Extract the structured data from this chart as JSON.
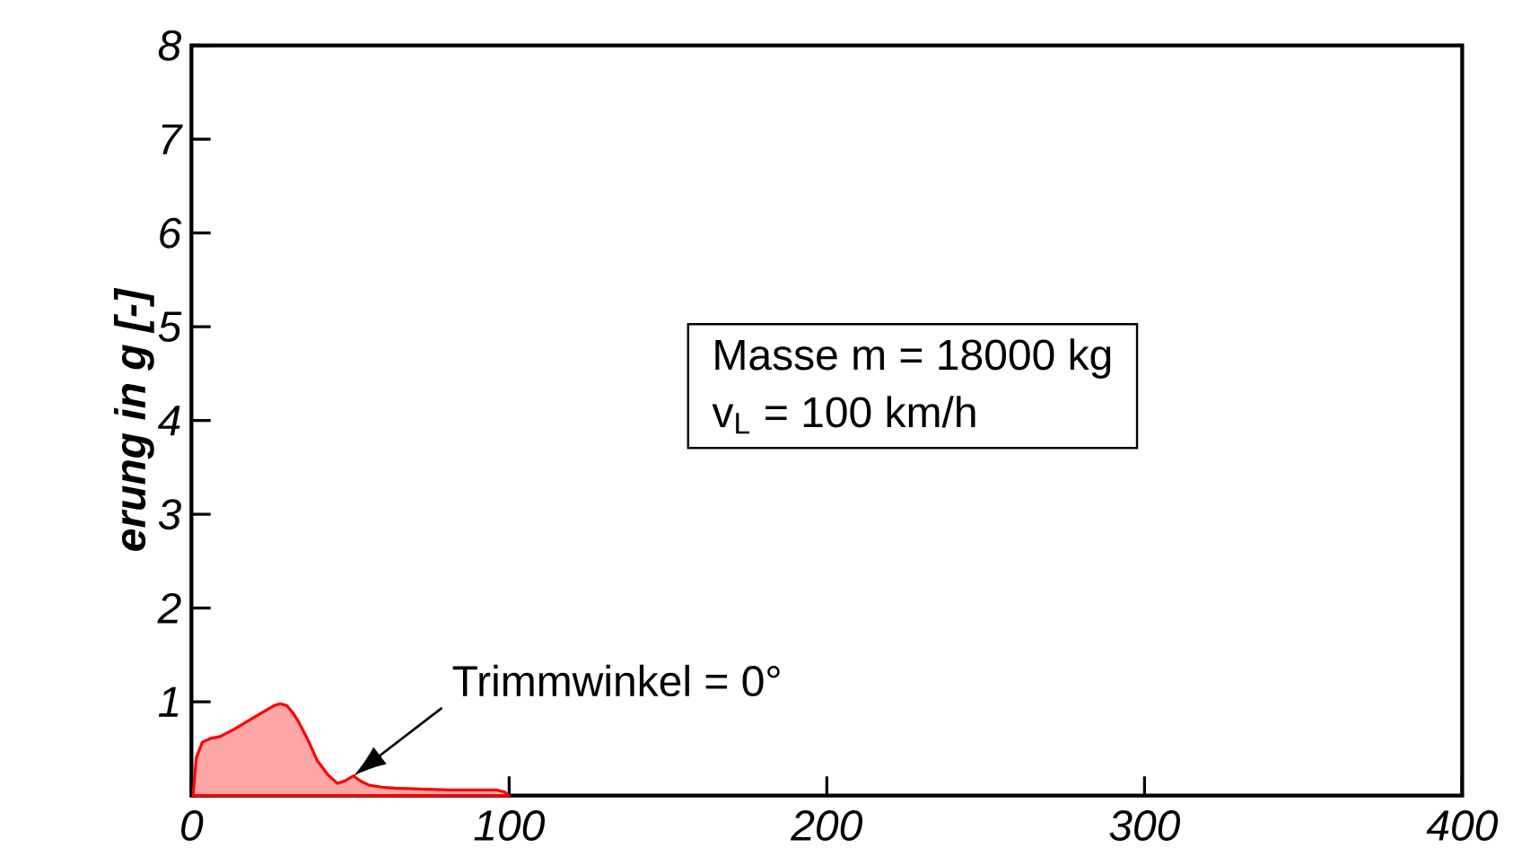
{
  "chart_data": {
    "type": "area",
    "ylabel": "erung in g [-]",
    "x": [
      0.5,
      1.5,
      3.4,
      6,
      9,
      13,
      17,
      22,
      26,
      28,
      30,
      32,
      34,
      37,
      39.5,
      43,
      46,
      48.5,
      51,
      53.5,
      56,
      60,
      64,
      72,
      81,
      88,
      96,
      98.5,
      100
    ],
    "series": [
      {
        "color": "#ff0000",
        "values": [
          0,
          0.4,
          0.57,
          0.61,
          0.63,
          0.7,
          0.78,
          0.88,
          0.96,
          0.98,
          0.96,
          0.88,
          0.77,
          0.57,
          0.38,
          0.22,
          0.13,
          0.16,
          0.21,
          0.15,
          0.11,
          0.09,
          0.08,
          0.07,
          0.06,
          0.06,
          0.06,
          0.04,
          0
        ]
      }
    ],
    "xlim": [
      0,
      400
    ],
    "xticks": [
      0,
      100,
      200,
      300,
      400
    ],
    "ylim": [
      0,
      8
    ],
    "yticks": [
      {
        "value": 0,
        "label": null
      },
      1,
      2,
      3,
      4,
      5,
      6,
      7,
      8
    ],
    "annotations": [
      {
        "text": "Trimmwinkel = 0°",
        "x": 51,
        "y": 0.21
      },
      "Masse m = 18000 kg",
      "v$_{L}$ = 100 km/h"
    ]
  }
}
